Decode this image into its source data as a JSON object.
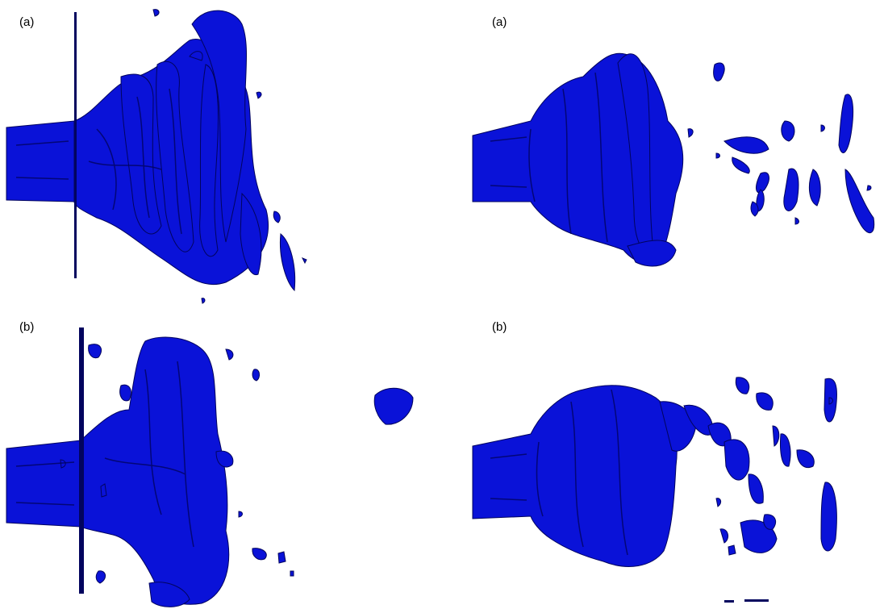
{
  "panels": {
    "top_left": {
      "label": "(a)"
    },
    "top_right": {
      "label": "(a)"
    },
    "bottom_left": {
      "label": "(b)"
    },
    "bottom_right": {
      "label": "(b)"
    }
  },
  "colors": {
    "surface": "#0a12d8",
    "shade": "#00006e",
    "background": "#ffffff"
  }
}
